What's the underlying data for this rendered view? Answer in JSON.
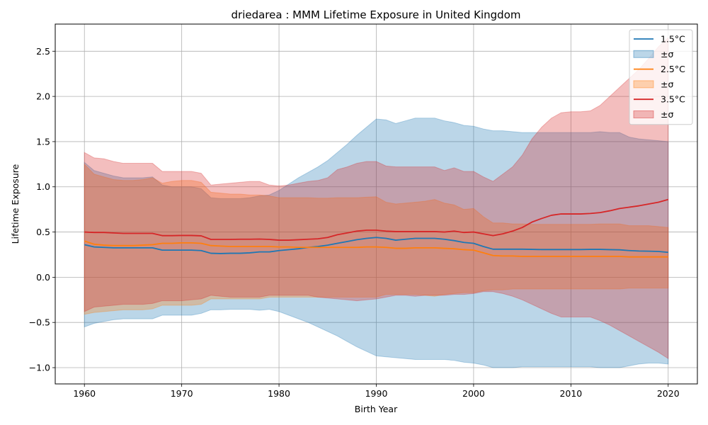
{
  "chart_data": {
    "type": "line",
    "title": "driedarea : MMM Lifetime Exposure in United Kingdom",
    "xlabel": "Birth Year",
    "ylabel": "Lifetime Exposure",
    "xlim": [
      1957,
      2023
    ],
    "ylim": [
      -1.18,
      2.8
    ],
    "xticks": [
      1960,
      1970,
      1980,
      1990,
      2000,
      2010,
      2020
    ],
    "yticks": [
      -1.0,
      -0.5,
      0.0,
      0.5,
      1.0,
      1.5,
      2.0,
      2.5
    ],
    "ytick_labels": [
      "−1.0",
      "−0.5",
      "0.0",
      "0.5",
      "1.0",
      "1.5",
      "2.0",
      "2.5"
    ],
    "grid": true,
    "legend_position": "top-right",
    "x": [
      1960,
      1961,
      1962,
      1963,
      1964,
      1965,
      1966,
      1967,
      1968,
      1969,
      1970,
      1971,
      1972,
      1973,
      1974,
      1975,
      1976,
      1977,
      1978,
      1979,
      1980,
      1981,
      1982,
      1983,
      1984,
      1985,
      1986,
      1987,
      1988,
      1989,
      1990,
      1991,
      1992,
      1993,
      1994,
      1995,
      1996,
      1997,
      1998,
      1999,
      2000,
      2001,
      2002,
      2003,
      2004,
      2005,
      2006,
      2007,
      2008,
      2009,
      2010,
      2011,
      2012,
      2013,
      2014,
      2015,
      2016,
      2017,
      2018,
      2019,
      2020
    ],
    "series": [
      {
        "name": "1.5°C",
        "band_label": "±σ",
        "color": "#1f77b4",
        "mean": [
          0.36,
          0.335,
          0.33,
          0.325,
          0.325,
          0.325,
          0.325,
          0.325,
          0.3,
          0.3,
          0.3,
          0.3,
          0.295,
          0.265,
          0.262,
          0.265,
          0.265,
          0.27,
          0.28,
          0.28,
          0.295,
          0.305,
          0.315,
          0.33,
          0.34,
          0.355,
          0.375,
          0.395,
          0.415,
          0.43,
          0.44,
          0.43,
          0.41,
          0.42,
          0.43,
          0.43,
          0.43,
          0.42,
          0.405,
          0.385,
          0.375,
          0.34,
          0.31,
          0.31,
          0.31,
          0.31,
          0.308,
          0.306,
          0.306,
          0.306,
          0.306,
          0.306,
          0.308,
          0.308,
          0.305,
          0.303,
          0.295,
          0.29,
          0.288,
          0.285,
          0.275
        ],
        "upper": [
          1.27,
          1.18,
          1.15,
          1.12,
          1.1,
          1.1,
          1.1,
          1.11,
          1.02,
          1.0,
          1.0,
          1.0,
          0.98,
          0.88,
          0.87,
          0.87,
          0.87,
          0.88,
          0.9,
          0.91,
          0.96,
          1.03,
          1.1,
          1.16,
          1.22,
          1.29,
          1.38,
          1.47,
          1.57,
          1.66,
          1.75,
          1.74,
          1.7,
          1.73,
          1.76,
          1.76,
          1.76,
          1.73,
          1.71,
          1.68,
          1.67,
          1.64,
          1.62,
          1.62,
          1.61,
          1.6,
          1.6,
          1.6,
          1.6,
          1.6,
          1.6,
          1.6,
          1.6,
          1.61,
          1.6,
          1.6,
          1.55,
          1.53,
          1.52,
          1.51,
          1.5
        ],
        "lower": [
          -0.55,
          -0.51,
          -0.49,
          -0.47,
          -0.46,
          -0.46,
          -0.46,
          -0.46,
          -0.42,
          -0.42,
          -0.42,
          -0.42,
          -0.4,
          -0.36,
          -0.36,
          -0.355,
          -0.355,
          -0.355,
          -0.365,
          -0.355,
          -0.38,
          -0.42,
          -0.46,
          -0.5,
          -0.55,
          -0.6,
          -0.65,
          -0.71,
          -0.77,
          -0.82,
          -0.87,
          -0.88,
          -0.89,
          -0.9,
          -0.91,
          -0.91,
          -0.91,
          -0.91,
          -0.92,
          -0.94,
          -0.95,
          -0.97,
          -1.0,
          -1.0,
          -1.0,
          -0.99,
          -0.99,
          -0.99,
          -0.99,
          -0.99,
          -0.99,
          -0.99,
          -0.99,
          -1.0,
          -1.0,
          -1.0,
          -0.98,
          -0.96,
          -0.95,
          -0.95,
          -0.96
        ]
      },
      {
        "name": "2.5°C",
        "band_label": "±σ",
        "color": "#ff7f0e",
        "mean": [
          0.4,
          0.365,
          0.355,
          0.35,
          0.35,
          0.35,
          0.355,
          0.36,
          0.375,
          0.375,
          0.38,
          0.38,
          0.375,
          0.35,
          0.345,
          0.34,
          0.34,
          0.34,
          0.34,
          0.34,
          0.335,
          0.335,
          0.33,
          0.33,
          0.33,
          0.33,
          0.33,
          0.33,
          0.33,
          0.335,
          0.335,
          0.33,
          0.32,
          0.32,
          0.325,
          0.325,
          0.325,
          0.32,
          0.315,
          0.305,
          0.3,
          0.27,
          0.24,
          0.235,
          0.235,
          0.23,
          0.23,
          0.23,
          0.23,
          0.23,
          0.23,
          0.23,
          0.23,
          0.23,
          0.23,
          0.23,
          0.225,
          0.225,
          0.225,
          0.225,
          0.225
        ],
        "upper": [
          1.25,
          1.14,
          1.11,
          1.08,
          1.07,
          1.07,
          1.08,
          1.1,
          1.04,
          1.06,
          1.07,
          1.07,
          1.05,
          0.94,
          0.93,
          0.92,
          0.92,
          0.91,
          0.91,
          0.9,
          0.88,
          0.88,
          0.88,
          0.88,
          0.875,
          0.875,
          0.88,
          0.88,
          0.88,
          0.885,
          0.89,
          0.83,
          0.81,
          0.82,
          0.83,
          0.84,
          0.86,
          0.82,
          0.8,
          0.75,
          0.76,
          0.67,
          0.6,
          0.6,
          0.59,
          0.59,
          0.585,
          0.585,
          0.585,
          0.585,
          0.585,
          0.585,
          0.585,
          0.59,
          0.59,
          0.59,
          0.57,
          0.57,
          0.57,
          0.56,
          0.55
        ],
        "lower": [
          -0.41,
          -0.39,
          -0.38,
          -0.37,
          -0.36,
          -0.36,
          -0.36,
          -0.35,
          -0.31,
          -0.31,
          -0.31,
          -0.31,
          -0.3,
          -0.24,
          -0.24,
          -0.24,
          -0.24,
          -0.24,
          -0.24,
          -0.22,
          -0.22,
          -0.22,
          -0.22,
          -0.22,
          -0.22,
          -0.22,
          -0.22,
          -0.22,
          -0.22,
          -0.22,
          -0.22,
          -0.19,
          -0.19,
          -0.19,
          -0.19,
          -0.2,
          -0.21,
          -0.19,
          -0.18,
          -0.17,
          -0.17,
          -0.15,
          -0.14,
          -0.14,
          -0.13,
          -0.13,
          -0.13,
          -0.13,
          -0.13,
          -0.13,
          -0.13,
          -0.13,
          -0.13,
          -0.13,
          -0.13,
          -0.13,
          -0.12,
          -0.12,
          -0.12,
          -0.12,
          -0.12
        ]
      },
      {
        "name": "3.5°C",
        "band_label": "±σ",
        "color": "#d62728",
        "mean": [
          0.5,
          0.495,
          0.495,
          0.49,
          0.485,
          0.485,
          0.485,
          0.485,
          0.46,
          0.46,
          0.462,
          0.462,
          0.458,
          0.418,
          0.418,
          0.418,
          0.42,
          0.42,
          0.422,
          0.418,
          0.41,
          0.41,
          0.415,
          0.42,
          0.425,
          0.44,
          0.47,
          0.49,
          0.51,
          0.52,
          0.52,
          0.51,
          0.505,
          0.505,
          0.505,
          0.505,
          0.505,
          0.5,
          0.51,
          0.495,
          0.5,
          0.48,
          0.46,
          0.48,
          0.51,
          0.55,
          0.61,
          0.65,
          0.685,
          0.7,
          0.7,
          0.7,
          0.705,
          0.715,
          0.735,
          0.76,
          0.775,
          0.79,
          0.81,
          0.83,
          0.86
        ],
        "upper": [
          1.38,
          1.32,
          1.31,
          1.28,
          1.26,
          1.26,
          1.26,
          1.26,
          1.17,
          1.17,
          1.17,
          1.17,
          1.15,
          1.02,
          1.03,
          1.04,
          1.05,
          1.06,
          1.06,
          1.02,
          1.01,
          1.02,
          1.04,
          1.06,
          1.07,
          1.1,
          1.19,
          1.22,
          1.26,
          1.28,
          1.28,
          1.23,
          1.22,
          1.22,
          1.22,
          1.22,
          1.22,
          1.18,
          1.21,
          1.17,
          1.17,
          1.11,
          1.06,
          1.14,
          1.22,
          1.35,
          1.53,
          1.66,
          1.76,
          1.82,
          1.83,
          1.83,
          1.84,
          1.9,
          2.0,
          2.1,
          2.2,
          2.3,
          2.42,
          2.55,
          2.65
        ],
        "lower": [
          -0.38,
          -0.33,
          -0.32,
          -0.31,
          -0.3,
          -0.3,
          -0.3,
          -0.29,
          -0.26,
          -0.26,
          -0.26,
          -0.25,
          -0.24,
          -0.2,
          -0.21,
          -0.22,
          -0.22,
          -0.22,
          -0.22,
          -0.2,
          -0.2,
          -0.2,
          -0.2,
          -0.2,
          -0.22,
          -0.23,
          -0.24,
          -0.25,
          -0.26,
          -0.25,
          -0.24,
          -0.22,
          -0.2,
          -0.2,
          -0.21,
          -0.2,
          -0.2,
          -0.2,
          -0.19,
          -0.19,
          -0.18,
          -0.16,
          -0.16,
          -0.18,
          -0.21,
          -0.25,
          -0.3,
          -0.35,
          -0.4,
          -0.44,
          -0.44,
          -0.44,
          -0.44,
          -0.48,
          -0.53,
          -0.59,
          -0.65,
          -0.71,
          -0.77,
          -0.83,
          -0.9
        ]
      }
    ]
  }
}
